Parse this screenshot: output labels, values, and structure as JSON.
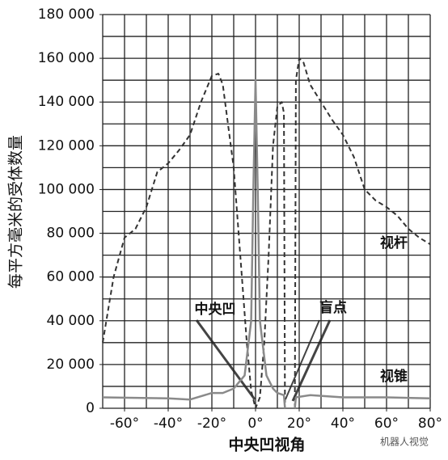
{
  "chart_data": {
    "type": "line",
    "xlabel": "中央凹视角",
    "ylabel": "每平方毫米的受体数量",
    "xlim": [
      -70,
      80
    ],
    "ylim": [
      0,
      180000
    ],
    "xticks": [
      {
        "value": -60,
        "label": "-60°"
      },
      {
        "value": -40,
        "label": "-40°"
      },
      {
        "value": -20,
        "label": "-20°"
      },
      {
        "value": 0,
        "label": "0°"
      },
      {
        "value": 20,
        "label": "20°"
      },
      {
        "value": 40,
        "label": "40°"
      },
      {
        "value": 60,
        "label": "60°"
      },
      {
        "value": 80,
        "label": "80°"
      }
    ],
    "yticks": [
      0,
      {
        "value": 20000,
        "label": "20 000"
      },
      {
        "value": 40000,
        "label": "40 000"
      },
      {
        "value": 60000,
        "label": "60 000"
      },
      {
        "value": 80000,
        "label": "80 000"
      },
      {
        "value": 100000,
        "label": "100 000"
      },
      {
        "value": 120000,
        "label": "120 000"
      },
      {
        "value": 140000,
        "label": "140 000"
      },
      {
        "value": 160000,
        "label": "160 000"
      },
      {
        "value": 180000,
        "label": "180 000"
      }
    ],
    "xgrid": [
      -70,
      -60,
      -50,
      -40,
      -30,
      -20,
      -10,
      0,
      10,
      20,
      30,
      40,
      50,
      60,
      70,
      80
    ],
    "ygrid": [
      0,
      10000,
      20000,
      30000,
      40000,
      50000,
      60000,
      70000,
      80000,
      90000,
      100000,
      110000,
      120000,
      130000,
      140000,
      150000,
      160000,
      170000,
      180000
    ],
    "grid": true,
    "series": [
      {
        "name": "视杆",
        "color": "#333333",
        "dash": true,
        "x": [
          -70,
          -65,
          -60,
          -55,
          -50,
          -45,
          -40,
          -35,
          -30,
          -25,
          -20,
          -17,
          -15,
          -10,
          -7,
          -4,
          -2,
          0,
          2,
          4,
          6,
          8,
          10,
          12,
          13,
          13.5,
          15.5,
          18,
          18.5,
          20,
          22,
          25,
          30,
          35,
          40,
          45,
          50,
          55,
          60,
          65,
          70,
          75,
          80
        ],
        "values": [
          30000,
          60000,
          78000,
          82000,
          92000,
          108000,
          112000,
          118000,
          125000,
          140000,
          152000,
          153000,
          148000,
          110000,
          70000,
          30000,
          8000,
          0,
          5000,
          30000,
          70000,
          120000,
          138000,
          140000,
          135000,
          0,
          null,
          0,
          150000,
          160000,
          158000,
          148000,
          140000,
          132000,
          125000,
          115000,
          100000,
          95000,
          92000,
          88000,
          82000,
          78000,
          75000
        ]
      },
      {
        "name": "视锥",
        "color": "#8a8a8a",
        "dash": false,
        "x": [
          -70,
          -40,
          -30,
          -20,
          -15,
          -10,
          -5,
          -2,
          -1,
          0,
          1,
          2,
          5,
          8,
          10,
          13,
          13.5,
          15.5,
          18,
          18.5,
          25,
          40,
          60,
          80
        ],
        "values": [
          5000,
          4500,
          4000,
          7000,
          7000,
          9000,
          15000,
          40000,
          100000,
          150000,
          100000,
          40000,
          15000,
          9000,
          7000,
          6000,
          0,
          null,
          0,
          5000,
          6000,
          5000,
          5000,
          4500
        ]
      }
    ],
    "annotations": [
      "中央凹",
      "盲点"
    ],
    "watermark": "机器人视觉"
  }
}
